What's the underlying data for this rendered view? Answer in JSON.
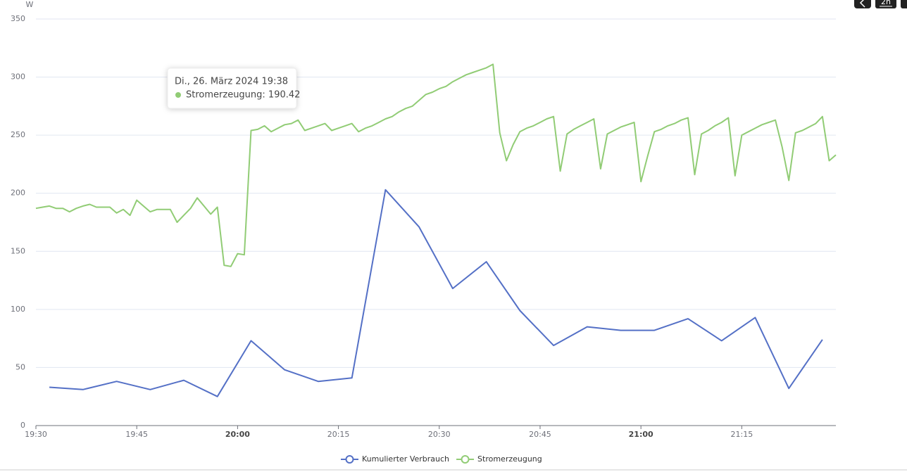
{
  "chart_data": {
    "type": "line",
    "y_unit": "W",
    "xlim": [
      "19:30",
      "21:29"
    ],
    "xticks": [
      "19:30",
      "19:45",
      "20:00",
      "20:15",
      "20:30",
      "20:45",
      "21:00",
      "21:15"
    ],
    "ylim": [
      0,
      350
    ],
    "yticks": [
      0,
      50,
      100,
      150,
      200,
      250,
      300,
      350
    ],
    "grid": true,
    "legend": "bottom",
    "tooltip": {
      "title": "Di., 26. März 2024 19:38",
      "text": "Stromerzeugung: 190.42"
    },
    "controls": [
      "2h"
    ],
    "series": [
      {
        "name": "Kumulierter Verbrauch",
        "color": "#5470c6",
        "x": [
          "19:32",
          "19:37",
          "19:42",
          "19:47",
          "19:52",
          "19:57",
          "20:02",
          "20:07",
          "20:12",
          "20:17",
          "20:22",
          "20:27",
          "20:32",
          "20:37",
          "20:42",
          "20:47",
          "20:52",
          "20:57",
          "21:02",
          "21:07",
          "21:12",
          "21:17",
          "21:22",
          "21:27"
        ],
        "values": [
          33,
          31,
          38,
          31,
          39,
          25,
          73,
          48,
          38,
          41,
          203,
          171,
          118,
          141,
          99,
          69,
          85,
          82,
          82,
          92,
          73,
          93,
          32,
          74
        ]
      },
      {
        "name": "Stromerzeugung",
        "color": "#91cc75",
        "x": [
          "19:30",
          "19:31",
          "19:32",
          "19:33",
          "19:34",
          "19:35",
          "19:36",
          "19:37",
          "19:38",
          "19:39",
          "19:40",
          "19:41",
          "19:42",
          "19:43",
          "19:44",
          "19:45",
          "19:46",
          "19:47",
          "19:48",
          "19:49",
          "19:50",
          "19:51",
          "19:52",
          "19:53",
          "19:54",
          "19:55",
          "19:56",
          "19:57",
          "19:58",
          "19:59",
          "20:00",
          "20:01",
          "20:02",
          "20:03",
          "20:04",
          "20:05",
          "20:06",
          "20:07",
          "20:08",
          "20:09",
          "20:10",
          "20:11",
          "20:12",
          "20:13",
          "20:14",
          "20:15",
          "20:16",
          "20:17",
          "20:18",
          "20:19",
          "20:20",
          "20:21",
          "20:22",
          "20:23",
          "20:24",
          "20:25",
          "20:26",
          "20:27",
          "20:28",
          "20:29",
          "20:30",
          "20:31",
          "20:32",
          "20:33",
          "20:34",
          "20:35",
          "20:36",
          "20:37",
          "20:38",
          "20:39",
          "20:40",
          "20:41",
          "20:42",
          "20:43",
          "20:44",
          "20:45",
          "20:46",
          "20:47",
          "20:48",
          "20:49",
          "20:50",
          "20:51",
          "20:52",
          "20:53",
          "20:54",
          "20:55",
          "20:56",
          "20:57",
          "20:58",
          "20:59",
          "21:00",
          "21:01",
          "21:02",
          "21:03",
          "21:04",
          "21:05",
          "21:06",
          "21:07",
          "21:08",
          "21:09",
          "21:10",
          "21:11",
          "21:12",
          "21:13",
          "21:14",
          "21:15",
          "21:16",
          "21:17",
          "21:18",
          "21:19",
          "21:20",
          "21:21",
          "21:22",
          "21:23",
          "21:24",
          "21:25",
          "21:26",
          "21:27",
          "21:28",
          "21:29"
        ],
        "values": [
          187,
          188,
          189,
          187,
          187,
          184,
          187,
          189,
          190.42,
          188,
          188,
          188,
          183,
          186,
          181,
          194,
          189,
          184,
          186,
          186,
          186,
          175,
          181,
          187,
          196,
          189,
          182,
          188,
          138,
          137,
          148,
          147,
          254,
          255,
          258,
          253,
          256,
          259,
          260,
          263,
          254,
          256,
          258,
          260,
          254,
          256,
          258,
          260,
          253,
          256,
          258,
          261,
          264,
          266,
          270,
          273,
          275,
          280,
          285,
          287,
          290,
          292,
          296,
          299,
          302,
          304,
          306,
          308,
          311,
          252,
          228,
          242,
          253,
          256,
          258,
          261,
          264,
          266,
          219,
          251,
          255,
          258,
          261,
          264,
          221,
          251,
          254,
          257,
          259,
          261,
          210,
          232,
          253,
          255,
          258,
          260,
          263,
          265,
          216,
          251,
          254,
          258,
          261,
          265,
          215,
          250,
          253,
          256,
          259,
          261,
          263,
          240,
          211,
          252,
          254,
          257,
          260,
          266,
          228,
          233
        ]
      }
    ]
  }
}
